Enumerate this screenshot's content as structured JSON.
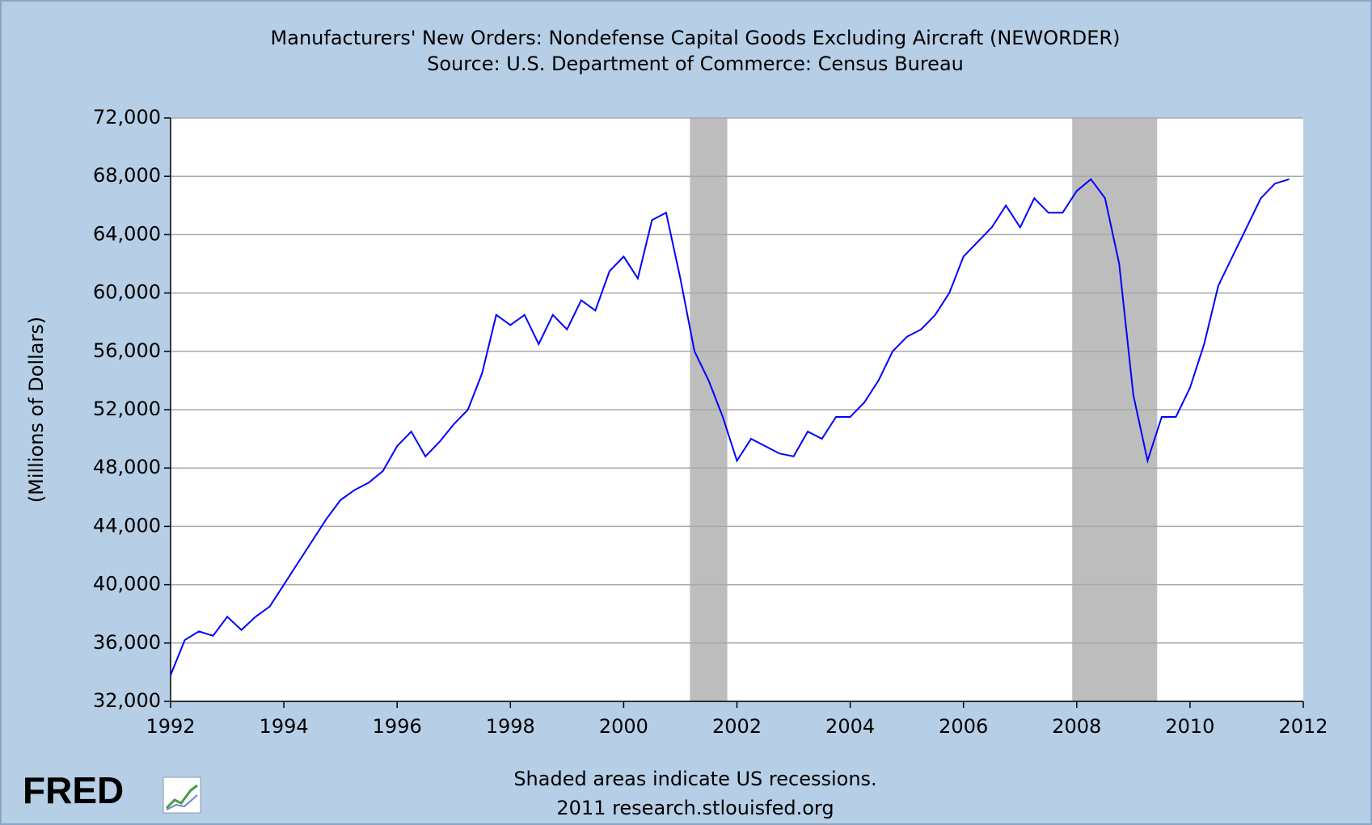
{
  "chart_data": {
    "type": "line",
    "title": "Manufacturers' New Orders: Nondefense Capital Goods Excluding Aircraft (NEWORDER)",
    "subtitle": "Source: U.S. Department of Commerce: Census Bureau",
    "y_label": "(Millions of Dollars)",
    "note": "Shaded areas indicate US recessions.",
    "credit": "2011 research.stlouisfed.org",
    "logo": "FRED",
    "x": [
      1992,
      1992.25,
      1992.5,
      1992.75,
      1993,
      1993.25,
      1993.5,
      1993.75,
      1994,
      1994.25,
      1994.5,
      1994.75,
      1995,
      1995.25,
      1995.5,
      1995.75,
      1996,
      1996.25,
      1996.5,
      1996.75,
      1997,
      1997.25,
      1997.5,
      1997.75,
      1998,
      1998.25,
      1998.5,
      1998.75,
      1999,
      1999.25,
      1999.5,
      1999.75,
      2000,
      2000.25,
      2000.5,
      2000.75,
      2001,
      2001.25,
      2001.5,
      2001.75,
      2002,
      2002.25,
      2002.5,
      2002.75,
      2003,
      2003.25,
      2003.5,
      2003.75,
      2004,
      2004.25,
      2004.5,
      2004.75,
      2005,
      2005.25,
      2005.5,
      2005.75,
      2006,
      2006.25,
      2006.5,
      2006.75,
      2007,
      2007.25,
      2007.5,
      2007.75,
      2008,
      2008.25,
      2008.5,
      2008.75,
      2009,
      2009.25,
      2009.5,
      2009.75,
      2010,
      2010.25,
      2010.5,
      2010.75,
      2011,
      2011.25,
      2011.5,
      2011.75
    ],
    "series": [
      {
        "name": "NEWORDER",
        "color": "#0000ff",
        "values": [
          33800,
          36200,
          36800,
          36500,
          37800,
          36900,
          37800,
          38500,
          40000,
          41500,
          43000,
          44500,
          45800,
          46500,
          47000,
          47800,
          49500,
          50500,
          48800,
          49800,
          51000,
          52000,
          54500,
          58500,
          57800,
          58500,
          56500,
          58500,
          57500,
          59500,
          58800,
          61500,
          62500,
          61000,
          65000,
          65500,
          61000,
          56000,
          54000,
          51500,
          48500,
          50000,
          49500,
          49000,
          48800,
          50500,
          50000,
          51500,
          51500,
          52500,
          54000,
          56000,
          57000,
          57500,
          58500,
          60000,
          62500,
          63500,
          64500,
          66000,
          64500,
          66500,
          65500,
          65500,
          67000,
          67800,
          66500,
          62000,
          53000,
          48500,
          51500,
          51500,
          53500,
          56500,
          60500,
          62500,
          64500,
          66500,
          67500,
          67800
        ]
      }
    ],
    "recessions": [
      [
        2001.17,
        2001.83
      ],
      [
        2007.92,
        2009.42
      ]
    ],
    "recession_color": "#bdbdbd",
    "xlim": [
      1992,
      2012
    ],
    "xticks": [
      1992,
      1994,
      1996,
      1998,
      2000,
      2002,
      2004,
      2006,
      2008,
      2010,
      2012
    ],
    "ylim": [
      32000,
      72000
    ],
    "yticks": [
      {
        "value": 32000,
        "label": "32,000"
      },
      {
        "value": 36000,
        "label": "36,000"
      },
      {
        "value": 40000,
        "label": "40,000"
      },
      {
        "value": 44000,
        "label": "44,000"
      },
      {
        "value": 48000,
        "label": "48,000"
      },
      {
        "value": 52000,
        "label": "52,000"
      },
      {
        "value": 56000,
        "label": "56,000"
      },
      {
        "value": 60000,
        "label": "60,000"
      },
      {
        "value": 64000,
        "label": "64,000"
      },
      {
        "value": 68000,
        "label": "68,000"
      },
      {
        "value": 72000,
        "label": "72,000"
      }
    ],
    "grid": true
  }
}
